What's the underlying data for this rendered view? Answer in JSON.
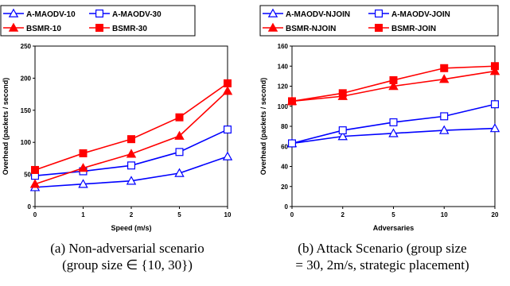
{
  "chart_data": [
    {
      "type": "line",
      "title": "",
      "xlabel": "Speed (m/s)",
      "ylabel": "Overhead (packets / second)",
      "categories": [
        "0",
        "1",
        "2",
        "5",
        "10"
      ],
      "ylim": [
        0,
        250
      ],
      "yticks": [
        0,
        50,
        100,
        150,
        200,
        250
      ],
      "grid": false,
      "legend_position": "top",
      "series": [
        {
          "name": "A-MAODV-10",
          "color": "#0000ff",
          "marker": "open-triangle",
          "values": [
            30,
            35,
            40,
            52,
            78
          ]
        },
        {
          "name": "A-MAODV-30",
          "color": "#0000ff",
          "marker": "open-square",
          "values": [
            48,
            55,
            64,
            85,
            120
          ]
        },
        {
          "name": "BSMR-10",
          "color": "#ff0000",
          "marker": "filled-triangle",
          "values": [
            35,
            60,
            82,
            110,
            180
          ]
        },
        {
          "name": "BSMR-30",
          "color": "#ff0000",
          "marker": "filled-square",
          "values": [
            57,
            83,
            105,
            139,
            192
          ]
        }
      ],
      "caption": [
        "(a) Non-adversarial scenario",
        "(group size ∈ {10, 30})"
      ]
    },
    {
      "type": "line",
      "title": "",
      "xlabel": "Adversaries",
      "ylabel": "Overhead (packets / second)",
      "categories": [
        "0",
        "2",
        "5",
        "10",
        "20"
      ],
      "ylim": [
        0,
        160
      ],
      "yticks": [
        0,
        20,
        40,
        60,
        80,
        100,
        120,
        140,
        160
      ],
      "grid": false,
      "legend_position": "top",
      "series": [
        {
          "name": "A-MAODV-NJOIN",
          "color": "#0000ff",
          "marker": "open-triangle",
          "values": [
            63,
            70,
            73,
            76,
            78
          ]
        },
        {
          "name": "A-MAODV-JOIN",
          "color": "#0000ff",
          "marker": "open-square",
          "values": [
            63,
            76,
            84,
            90,
            102
          ]
        },
        {
          "name": "BSMR-NJOIN",
          "color": "#ff0000",
          "marker": "filled-triangle",
          "values": [
            105,
            110,
            120,
            127,
            135
          ]
        },
        {
          "name": "BSMR-JOIN",
          "color": "#ff0000",
          "marker": "filled-square",
          "values": [
            105,
            113,
            126,
            138,
            140
          ]
        }
      ],
      "caption": [
        "(b) Attack Scenario (group size",
        "= 30, 2m/s, strategic placement)"
      ]
    }
  ]
}
